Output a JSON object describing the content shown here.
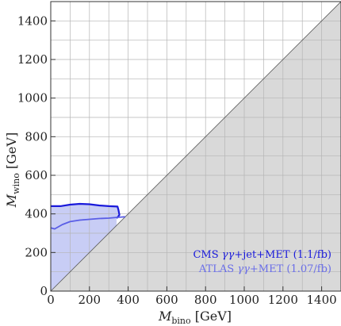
{
  "chart_data": {
    "type": "area",
    "xlabel": {
      "symbol": "M",
      "sub": "bino",
      "unit": "[GeV]"
    },
    "ylabel": {
      "symbol": "M",
      "sub": "wino",
      "unit": "[GeV]"
    },
    "xlim": [
      0,
      1500
    ],
    "ylim": [
      0,
      1500
    ],
    "xticks": [
      0,
      200,
      400,
      600,
      800,
      1000,
      1200,
      1400
    ],
    "yticks": [
      0,
      200,
      400,
      600,
      800,
      1000,
      1200,
      1400
    ],
    "grid": true,
    "grid_step": 100,
    "excluded_region": {
      "description": "M_bino > M_wino",
      "fill": "#d9d9d9",
      "boundary": [
        [
          0,
          0
        ],
        [
          1500,
          1500
        ]
      ]
    },
    "series": [
      {
        "name": "CMS γγ+jet+MET (1.1/fb)",
        "color": "#1a1adb",
        "fill": "#c8cdf5",
        "x": [
          0,
          50,
          100,
          150,
          200,
          250,
          300,
          345,
          350,
          355,
          350,
          345,
          340
        ],
        "y": [
          440,
          440,
          448,
          452,
          450,
          444,
          440,
          438,
          420,
          395,
          388,
          382,
          378
        ]
      },
      {
        "name": "ATLAS γγ+MET (1.07/fb)",
        "color": "#5a5ee6",
        "x": [
          0,
          20,
          60,
          100,
          150,
          200,
          250,
          300,
          345,
          385
        ],
        "y": [
          328,
          322,
          345,
          360,
          368,
          372,
          376,
          378,
          382,
          385
        ]
      }
    ],
    "legend": {
      "position": "bottom-right",
      "entries": [
        {
          "prefix": "CMS ",
          "italic": "γγ",
          "suffix": "+jet+MET (1.1/fb)",
          "color": "#1a1adb"
        },
        {
          "prefix": "ATLAS ",
          "italic": "γγ",
          "suffix": "+MET (1.07/fb)",
          "color": "#6a6ee8"
        }
      ]
    }
  }
}
